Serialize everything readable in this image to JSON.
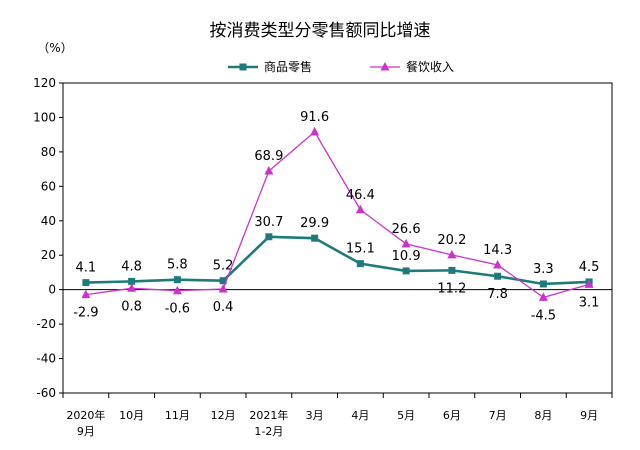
{
  "chart_data": {
    "type": "line",
    "title": "按消费类型分零售额同比增速",
    "y_unit": "（%）",
    "ylim": [
      -60,
      120
    ],
    "y_ticks": [
      "120",
      "100",
      "80",
      "60",
      "40",
      "20",
      "0",
      "-20",
      "-40",
      "-60"
    ],
    "categories": [
      {
        "line1": "2020年",
        "line2": "9月"
      },
      {
        "line1": "10月",
        "line2": ""
      },
      {
        "line1": "11月",
        "line2": ""
      },
      {
        "line1": "12月",
        "line2": ""
      },
      {
        "line1": "2021年",
        "line2": "1-2月"
      },
      {
        "line1": "3月",
        "line2": ""
      },
      {
        "line1": "4月",
        "line2": ""
      },
      {
        "line1": "5月",
        "line2": ""
      },
      {
        "line1": "6月",
        "line2": ""
      },
      {
        "line1": "7月",
        "line2": ""
      },
      {
        "line1": "8月",
        "line2": ""
      },
      {
        "line1": "9月",
        "line2": ""
      }
    ],
    "series": [
      {
        "name": "商品零售",
        "color": "#1f7b7b",
        "marker": "square",
        "values": [
          4.1,
          4.8,
          5.8,
          5.2,
          30.7,
          29.9,
          15.1,
          10.9,
          11.2,
          7.8,
          3.3,
          4.5
        ],
        "labels": [
          "4.1",
          "4.8",
          "5.8",
          "5.2",
          "30.7",
          "29.9",
          "15.1",
          "10.9",
          "11.2",
          "7.8",
          "3.3",
          "4.5"
        ]
      },
      {
        "name": "餐饮收入",
        "color": "#cc33cc",
        "marker": "triangle",
        "values": [
          -2.9,
          0.8,
          -0.6,
          0.4,
          68.9,
          91.6,
          46.4,
          26.6,
          20.2,
          14.3,
          -4.5,
          3.1
        ],
        "labels": [
          "-2.9",
          "0.8",
          "-0.6",
          "0.4",
          "68.9",
          "91.6",
          "46.4",
          "26.6",
          "20.2",
          "14.3",
          "-4.5",
          "3.1"
        ]
      }
    ],
    "legend": "top-center",
    "grid": false
  }
}
